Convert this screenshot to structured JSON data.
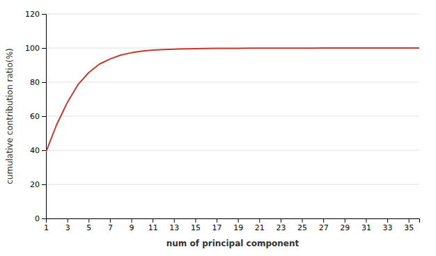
{
  "chart_data": {
    "type": "line",
    "xlabel": "num of principal component",
    "ylabel": "cumulative contribution ratio(%)",
    "x": [
      1,
      2,
      3,
      4,
      5,
      6,
      7,
      8,
      9,
      10,
      11,
      12,
      13,
      14,
      15,
      16,
      17,
      18,
      19,
      20,
      21,
      22,
      23,
      24,
      25,
      26,
      27,
      28,
      29,
      30,
      31,
      32,
      33,
      34,
      35,
      36
    ],
    "values": [
      39.0,
      55.0,
      68.0,
      78.5,
      85.5,
      90.5,
      93.5,
      95.8,
      97.2,
      98.2,
      98.8,
      99.1,
      99.3,
      99.5,
      99.6,
      99.7,
      99.75,
      99.8,
      99.83,
      99.86,
      99.88,
      99.9,
      99.91,
      99.92,
      99.93,
      99.94,
      99.95,
      99.96,
      99.96,
      99.97,
      99.97,
      99.98,
      99.98,
      99.99,
      99.99,
      100.0
    ],
    "color": "#c0392b",
    "xlim": [
      1,
      36
    ],
    "ylim": [
      0,
      120
    ],
    "xticks": [
      1,
      3,
      5,
      7,
      9,
      11,
      13,
      15,
      17,
      19,
      21,
      23,
      25,
      27,
      29,
      31,
      33,
      35
    ],
    "yticks": [
      0,
      20,
      40,
      60,
      80,
      100,
      120
    ],
    "grid": true
  }
}
